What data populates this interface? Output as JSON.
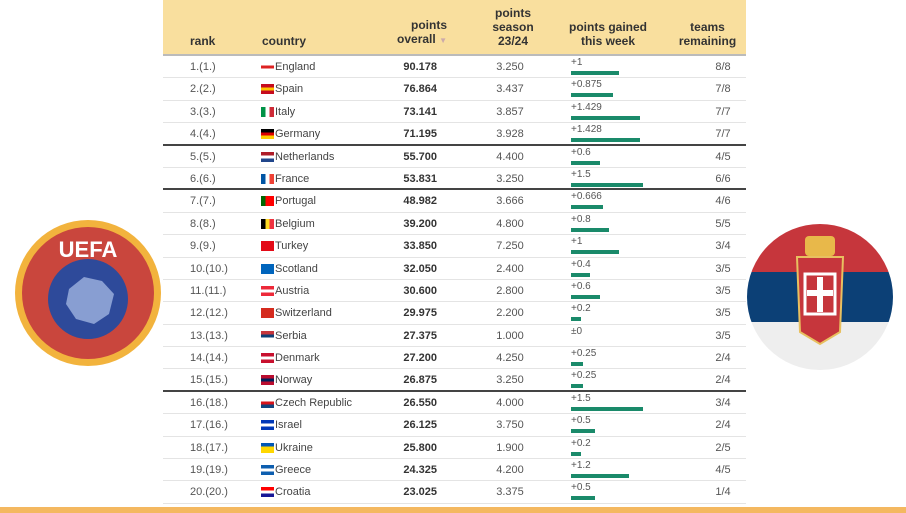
{
  "header": {
    "rank": "rank",
    "country": "country",
    "points_overall": "points overall",
    "sort_icon": "▼",
    "points_season": "points season 23/24",
    "points_week": "points gained this week",
    "teams": "teams remaining"
  },
  "logos": {
    "uefa": "UEFA"
  },
  "colors": {
    "header_bg": "#f9df9e",
    "bar": "#1a8a6a",
    "footer": "#f4b860"
  },
  "rows": [
    {
      "rank": "1.(1.)",
      "country": "England",
      "points": "90.178",
      "season": "3.250",
      "gain": "+1",
      "gain_value": 1,
      "teams": "8/8",
      "flag": [
        "#fff",
        "#d22",
        "#fff"
      ]
    },
    {
      "rank": "2.(2.)",
      "country": "Spain",
      "points": "76.864",
      "season": "3.437",
      "gain": "+0.875",
      "gain_value": 0.875,
      "teams": "7/8",
      "flag": [
        "#c60b1e",
        "#ffc400",
        "#c60b1e"
      ]
    },
    {
      "rank": "3.(3.)",
      "country": "Italy",
      "points": "73.141",
      "season": "3.857",
      "gain": "+1.429",
      "gain_value": 1.429,
      "teams": "7/7",
      "flag": [
        "#009246",
        "#fff",
        "#ce2b37"
      ],
      "vertical": true
    },
    {
      "rank": "4.(4.)",
      "country": "Germany",
      "points": "71.195",
      "season": "3.928",
      "gain": "+1.428",
      "gain_value": 1.428,
      "teams": "7/7",
      "flag": [
        "#000",
        "#d00",
        "#ffce00"
      ]
    },
    {
      "rank": "5.(5.)",
      "country": "Netherlands",
      "points": "55.700",
      "season": "4.400",
      "gain": "+0.6",
      "gain_value": 0.6,
      "teams": "4/5",
      "flag": [
        "#ae1c28",
        "#fff",
        "#21468b"
      ]
    },
    {
      "rank": "6.(6.)",
      "country": "France",
      "points": "53.831",
      "season": "3.250",
      "gain": "+1.5",
      "gain_value": 1.5,
      "teams": "6/6",
      "flag": [
        "#0055a4",
        "#fff",
        "#ef4135"
      ],
      "vertical": true
    },
    {
      "rank": "7.(7.)",
      "country": "Portugal",
      "points": "48.982",
      "season": "3.666",
      "gain": "+0.666",
      "gain_value": 0.666,
      "teams": "4/6",
      "flag": [
        "#060",
        "#f00",
        "#f00"
      ],
      "vertical": true
    },
    {
      "rank": "8.(8.)",
      "country": "Belgium",
      "points": "39.200",
      "season": "4.800",
      "gain": "+0.8",
      "gain_value": 0.8,
      "teams": "5/5",
      "flag": [
        "#000",
        "#fdda24",
        "#ef3340"
      ],
      "vertical": true
    },
    {
      "rank": "9.(9.)",
      "country": "Turkey",
      "points": "33.850",
      "season": "7.250",
      "gain": "+1",
      "gain_value": 1,
      "teams": "3/4",
      "flag": [
        "#e30a17",
        "#e30a17",
        "#e30a17"
      ]
    },
    {
      "rank": "10.(10.)",
      "country": "Scotland",
      "points": "32.050",
      "season": "2.400",
      "gain": "+0.4",
      "gain_value": 0.4,
      "teams": "3/5",
      "flag": [
        "#0065bd",
        "#0065bd",
        "#0065bd"
      ]
    },
    {
      "rank": "11.(11.)",
      "country": "Austria",
      "points": "30.600",
      "season": "2.800",
      "gain": "+0.6",
      "gain_value": 0.6,
      "teams": "3/5",
      "flag": [
        "#ed2939",
        "#fff",
        "#ed2939"
      ]
    },
    {
      "rank": "12.(12.)",
      "country": "Switzerland",
      "points": "29.975",
      "season": "2.200",
      "gain": "+0.2",
      "gain_value": 0.2,
      "teams": "3/5",
      "flag": [
        "#d52b1e",
        "#d52b1e",
        "#d52b1e"
      ]
    },
    {
      "rank": "13.(13.)",
      "country": "Serbia",
      "points": "27.375",
      "season": "1.000",
      "gain": "±0",
      "gain_value": 0,
      "teams": "3/5",
      "flag": [
        "#c6363c",
        "#0c4076",
        "#fff"
      ]
    },
    {
      "rank": "14.(14.)",
      "country": "Denmark",
      "points": "27.200",
      "season": "4.250",
      "gain": "+0.25",
      "gain_value": 0.25,
      "teams": "2/4",
      "flag": [
        "#c8102e",
        "#fff",
        "#c8102e"
      ]
    },
    {
      "rank": "15.(15.)",
      "country": "Norway",
      "points": "26.875",
      "season": "3.250",
      "gain": "+0.25",
      "gain_value": 0.25,
      "teams": "2/4",
      "flag": [
        "#ba0c2f",
        "#00205b",
        "#ba0c2f"
      ]
    },
    {
      "rank": "16.(18.)",
      "country": "Czech Republic",
      "points": "26.550",
      "season": "4.000",
      "gain": "+1.5",
      "gain_value": 1.5,
      "teams": "3/4",
      "flag": [
        "#fff",
        "#d7141a",
        "#11457e"
      ]
    },
    {
      "rank": "17.(16.)",
      "country": "Israel",
      "points": "26.125",
      "season": "3.750",
      "gain": "+0.5",
      "gain_value": 0.5,
      "teams": "2/4",
      "flag": [
        "#0038b8",
        "#fff",
        "#0038b8"
      ]
    },
    {
      "rank": "18.(17.)",
      "country": "Ukraine",
      "points": "25.800",
      "season": "1.900",
      "gain": "+0.2",
      "gain_value": 0.2,
      "teams": "2/5",
      "flag": [
        "#0057b7",
        "#ffd700",
        "#ffd700"
      ]
    },
    {
      "rank": "19.(19.)",
      "country": "Greece",
      "points": "24.325",
      "season": "4.200",
      "gain": "+1.2",
      "gain_value": 1.2,
      "teams": "4/5",
      "flag": [
        "#0d5eaf",
        "#fff",
        "#0d5eaf"
      ]
    },
    {
      "rank": "20.(20.)",
      "country": "Croatia",
      "points": "23.025",
      "season": "3.375",
      "gain": "+0.5",
      "gain_value": 0.5,
      "teams": "1/4",
      "flag": [
        "#f00",
        "#fff",
        "#171796"
      ]
    }
  ]
}
